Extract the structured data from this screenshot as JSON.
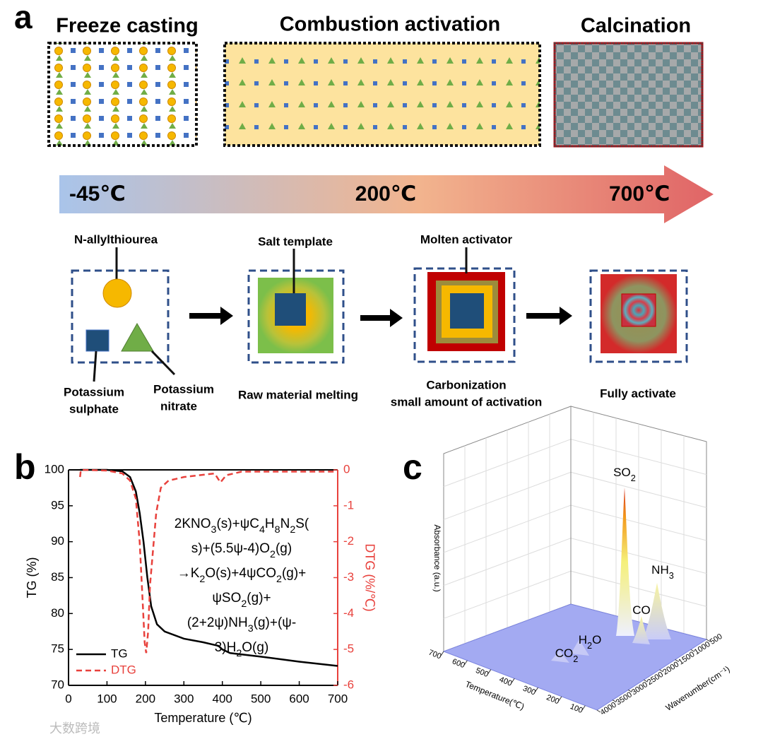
{
  "panel_a": {
    "label": "a",
    "stages": [
      "Freeze casting",
      "Combustion activation",
      "Calcination"
    ],
    "temperatures": [
      "-45℃",
      "200℃",
      "700℃"
    ],
    "callouts": [
      "N-allylthiourea",
      "Salt template",
      "Molten activator"
    ],
    "materials": [
      [
        "Potassium",
        "sulphate"
      ],
      [
        "Potassium",
        "nitrate"
      ]
    ],
    "steps": [
      [
        "Raw material melting"
      ],
      [
        "Carbonization",
        "small amount of activation"
      ],
      [
        "Fully activate"
      ]
    ]
  },
  "chart_data": [
    {
      "type": "line",
      "panel_label": "b",
      "xlabel": "Temperature (℃)",
      "ylabel": "TG (%)",
      "y2label": "DTG (%/℃)",
      "xlim": [
        0,
        700
      ],
      "xticks": [
        0,
        100,
        200,
        300,
        400,
        500,
        600,
        700
      ],
      "ylim": [
        70,
        100
      ],
      "yticks": [
        70,
        75,
        80,
        85,
        90,
        95,
        100
      ],
      "y2lim": [
        -6,
        0
      ],
      "y2ticks": [
        -6,
        -5,
        -4,
        -3,
        -2,
        -1,
        0
      ],
      "legend": "lower left",
      "annotation": [
        "2KNO3(s)+ψC4H8N2S(",
        "s)+(5.5ψ-4)O2(g)",
        "→K2O(s)+4ψCO2(g)+",
        "ψSO2(g)+",
        "(2+2ψ)NH3(g)+(ψ-",
        "3)H2O(g)"
      ],
      "series": [
        {
          "name": "TG",
          "color": "#000000",
          "dash": false,
          "x": [
            30,
            100,
            140,
            160,
            175,
            185,
            195,
            205,
            215,
            230,
            250,
            300,
            350,
            390,
            400,
            420,
            500,
            600,
            700
          ],
          "values": [
            100,
            100,
            99.8,
            99,
            97,
            94,
            90,
            85,
            81,
            78.5,
            77.5,
            76.5,
            76,
            75.5,
            75,
            74.5,
            74,
            73.3,
            72.7
          ]
        },
        {
          "name": "DTG",
          "color": "#e8413c",
          "dash": true,
          "axis": "y2",
          "x": [
            30,
            32,
            100,
            140,
            160,
            175,
            185,
            192,
            198,
            202,
            207,
            212,
            220,
            228,
            240,
            260,
            300,
            380,
            395,
            410,
            450,
            700
          ],
          "values": [
            -0.2,
            0,
            -0.02,
            -0.1,
            -0.3,
            -0.8,
            -2,
            -3.5,
            -4.8,
            -5.1,
            -4.5,
            -3.2,
            -2.2,
            -1.2,
            -0.5,
            -0.3,
            -0.2,
            -0.1,
            -0.35,
            -0.15,
            -0.05,
            -0.05
          ]
        }
      ]
    },
    {
      "type": "surface3d",
      "panel_label": "c",
      "xlabel": "Temperature(℃)",
      "ylabel": "Wavenumber(cm⁻¹)",
      "zlabel": "Absorbance (a.u.)",
      "xlim": [
        50,
        700
      ],
      "xticks": [
        100,
        200,
        300,
        400,
        500,
        600,
        700
      ],
      "ylim": [
        500,
        4000
      ],
      "yticks": [
        500,
        1000,
        1500,
        2000,
        2500,
        3000,
        3500,
        4000
      ],
      "annotations": [
        "SO2",
        "NH3",
        "CO",
        "H2O",
        "CO2"
      ]
    }
  ],
  "watermark": "大数跨境"
}
